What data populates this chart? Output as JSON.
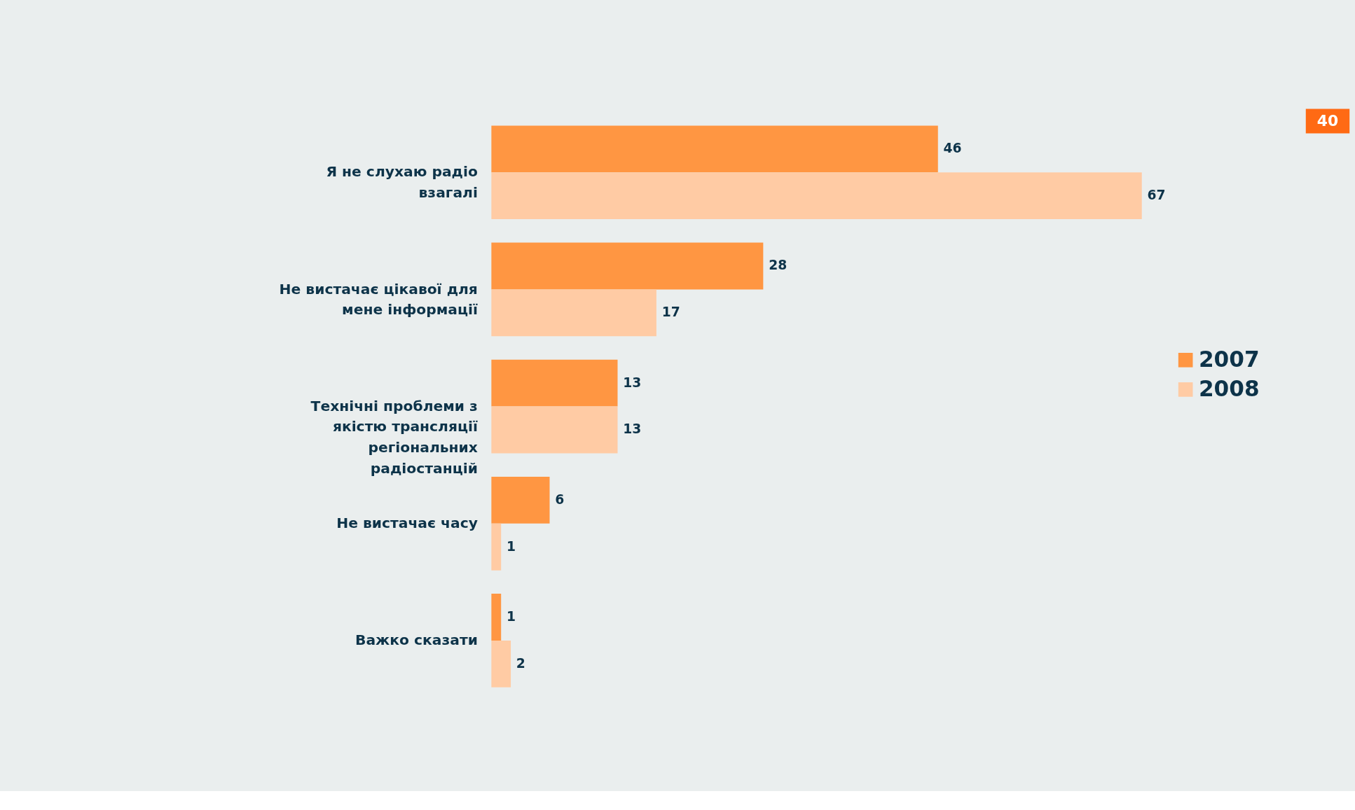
{
  "chart_data": {
    "type": "bar",
    "orientation": "horizontal",
    "categories": [
      "Я не слухаю радіо взагалі",
      "Не вистачає цікавої для мене інформації",
      "Технічні проблеми з якістю трансляції регіональних радіостанцій",
      "Не вистачає часу",
      "Важко сказати"
    ],
    "series": [
      {
        "name": "2007",
        "color": "#ff9642",
        "values": [
          46,
          28,
          13,
          6,
          1
        ]
      },
      {
        "name": "2008",
        "color": "#ffcba4",
        "values": [
          67,
          17,
          13,
          1,
          2
        ]
      }
    ],
    "data_labels": true,
    "legend": "right",
    "grid": false,
    "annotations": [
      "40"
    ]
  }
}
